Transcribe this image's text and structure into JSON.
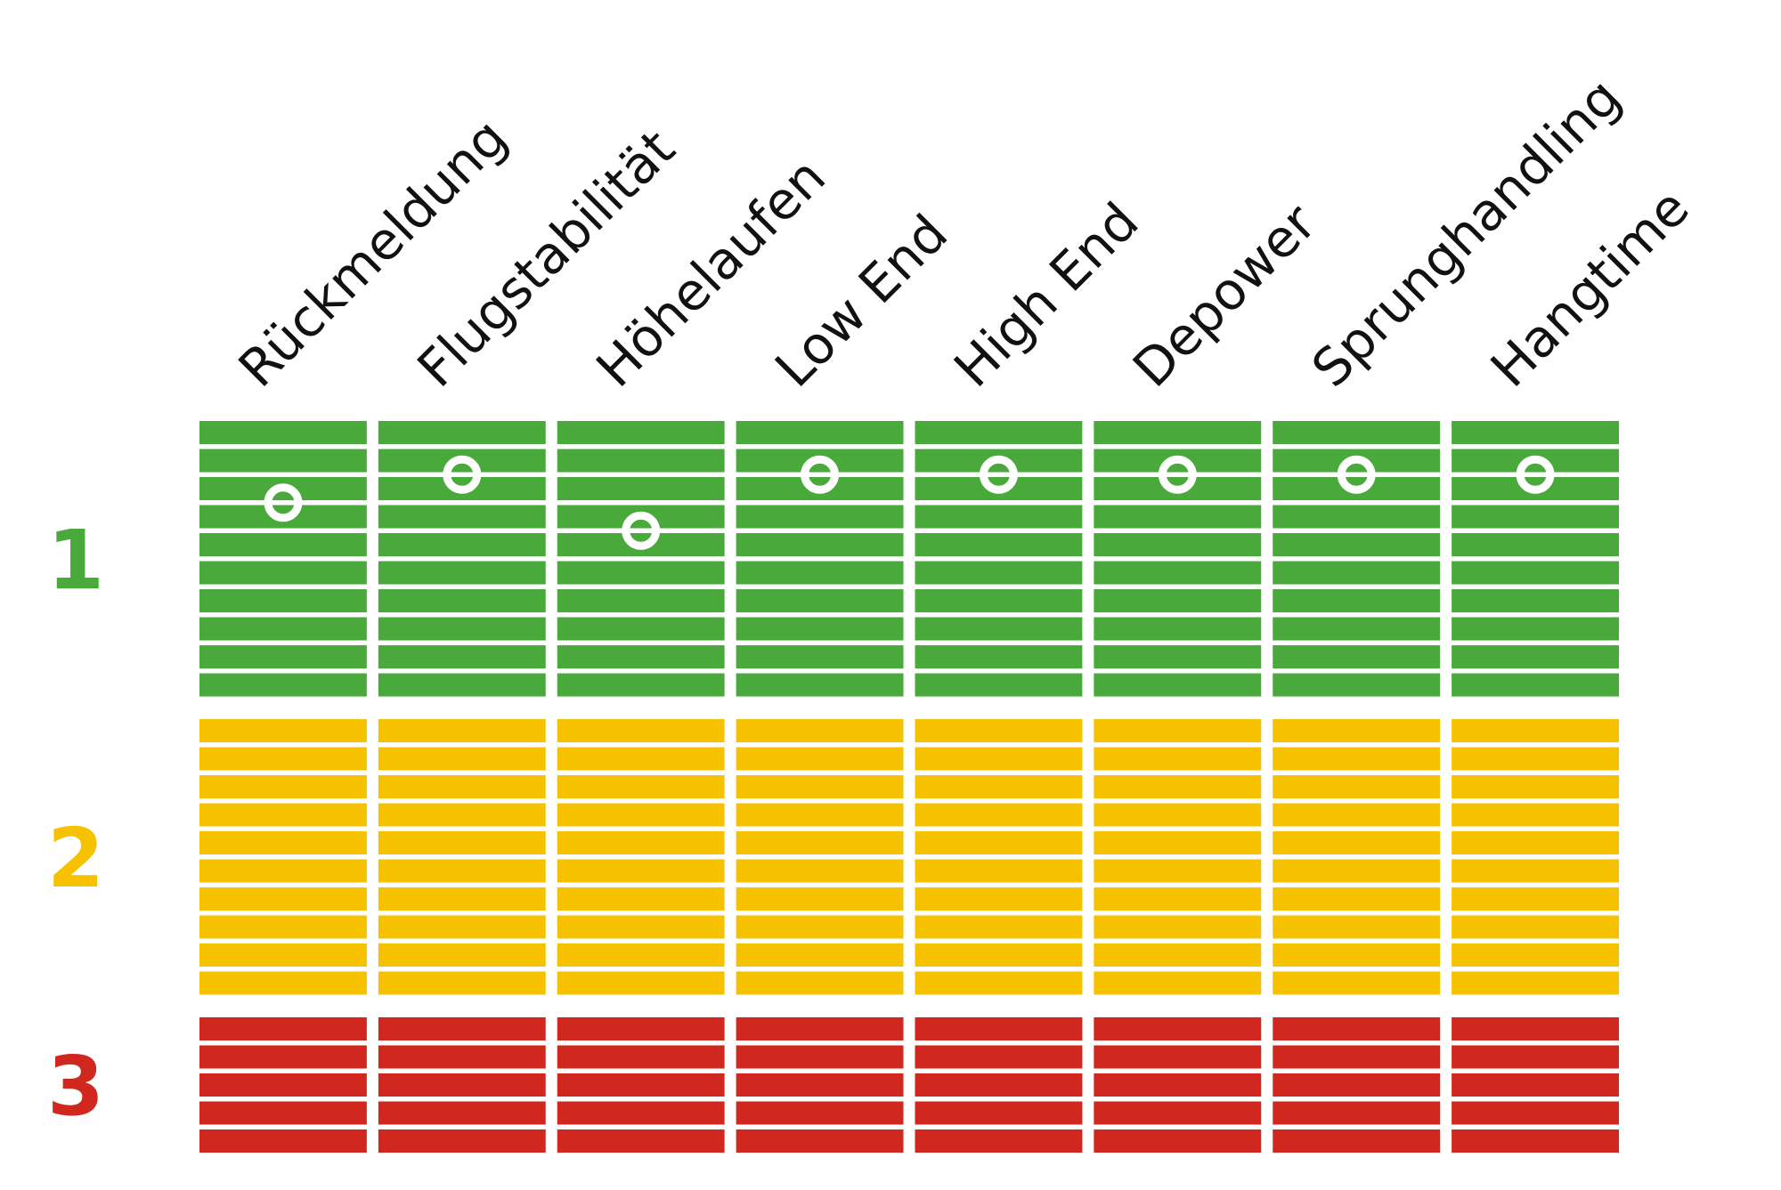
{
  "chart_data": {
    "type": "table",
    "categories": [
      "Rückmeldung",
      "Flugstabilität",
      "Höhelaufen",
      "Low End",
      "High End",
      "Depower",
      "Sprunghandling",
      "Hangtime"
    ],
    "zones": [
      {
        "label": "1",
        "color": "#4aa93b",
        "stripes": 10
      },
      {
        "label": "2",
        "color": "#f6c200",
        "stripes": 10
      },
      {
        "label": "3",
        "color": "#d0281e",
        "stripes": 5
      }
    ],
    "marker_zone": "1",
    "marker_stripe_index": [
      3,
      2,
      4,
      2,
      2,
      2,
      2,
      2
    ],
    "marker_style": "white ring"
  }
}
